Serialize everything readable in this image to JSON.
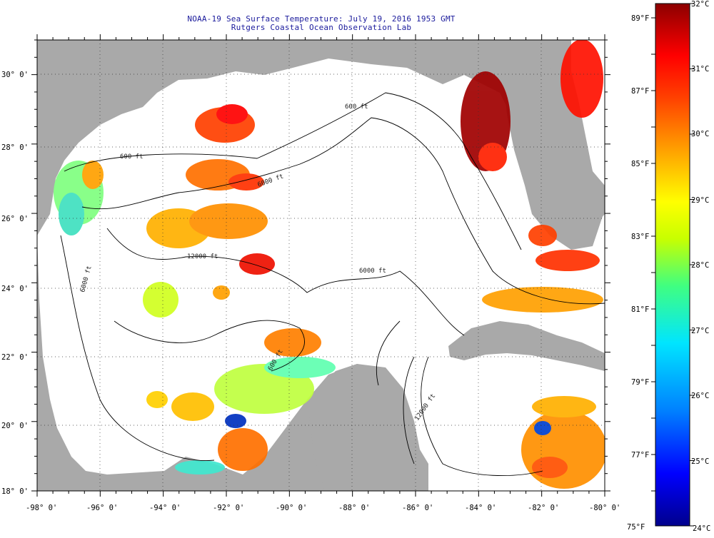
{
  "title": {
    "line1": "NOAA-19 Sea Surface Temperature:  July 19, 2016 1953 GMT",
    "line2": "Rutgers Coastal Ocean Observation Lab"
  },
  "axes": {
    "x_ticks": [
      "-98° 0'",
      "-96° 0'",
      "-94° 0'",
      "-92° 0'",
      "-90° 0'",
      "-88° 0'",
      "-86° 0'",
      "-84° 0'",
      "-82° 0'",
      "-80° 0'"
    ],
    "y_ticks": [
      "30° 0'",
      "28° 0'",
      "26° 0'",
      "24° 0'",
      "22° 0'",
      "20° 0'",
      "18° 0'"
    ],
    "x_range": [
      -98,
      -80
    ],
    "y_range": [
      18,
      31
    ]
  },
  "colorbar": {
    "celsius_labels": [
      "32°C",
      "31°C",
      "30°C",
      "29°C",
      "28°C",
      "27°C",
      "26°C",
      "25°C",
      "24°C"
    ],
    "fahrenheit_labels": [
      "89°F",
      "87°F",
      "85°F",
      "83°F",
      "81°F",
      "79°F",
      "77°F",
      "75°F"
    ],
    "range_c": [
      24,
      32
    ],
    "colors": [
      "#00008c",
      "#0000ff",
      "#0080ff",
      "#00e5ff",
      "#40ff80",
      "#c8ff00",
      "#ffff00",
      "#ffa000",
      "#ff4000",
      "#ff0000",
      "#8c0000"
    ]
  },
  "contour_labels": [
    "600 ft",
    "600 ft",
    "6000 ft",
    "12000 ft",
    "6000 ft",
    "6000 ft",
    "600 ft",
    "12000 ft"
  ],
  "colors": {
    "land": "#a9a9a9",
    "ocean": "#ffffff",
    "title": "#1a1a9c"
  }
}
